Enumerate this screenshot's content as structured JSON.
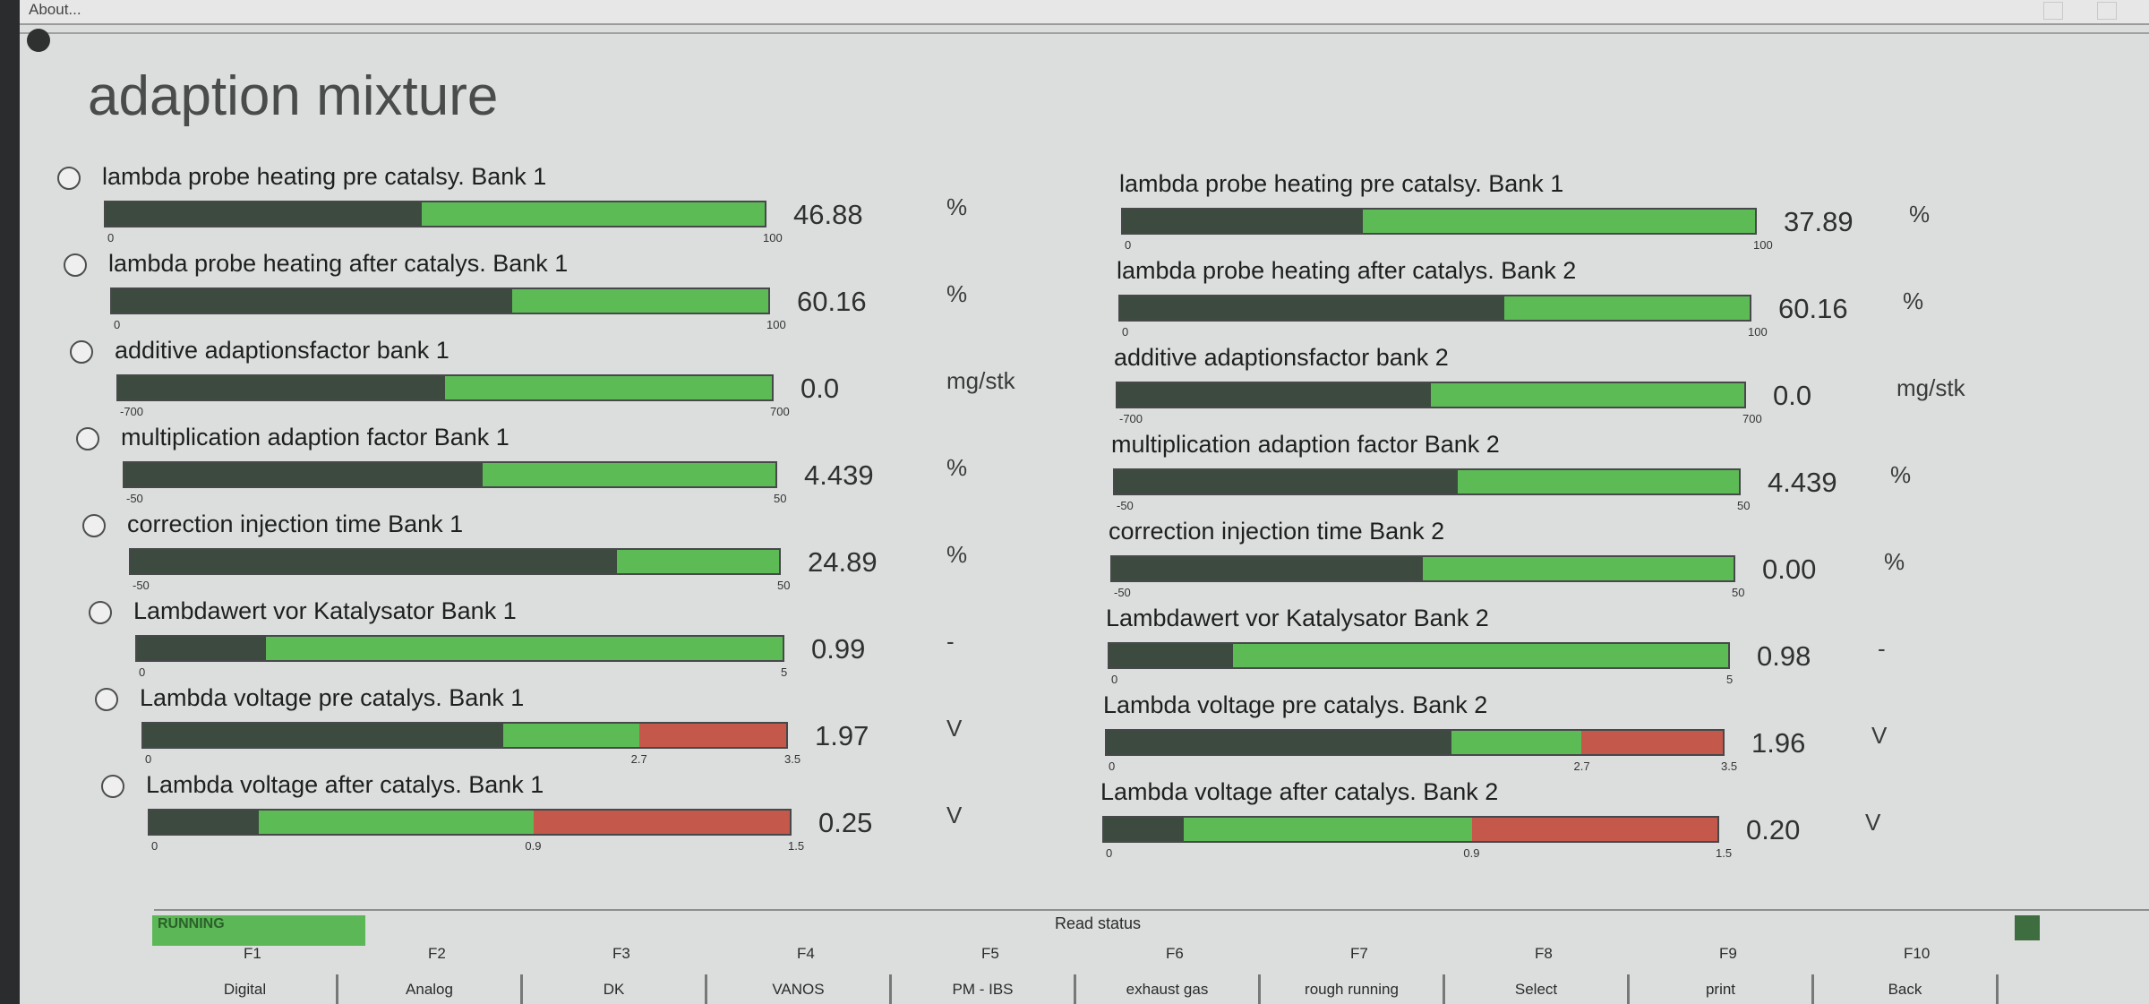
{
  "menubar": {
    "about": "About..."
  },
  "title": "adaption mixture",
  "left_rows": [
    {
      "label": "lambda probe heating pre catalsy. Bank 1",
      "value": "46.88",
      "unit": "%",
      "min": "0",
      "max": "100",
      "fill": 0.48
    },
    {
      "label": "lambda probe heating after catalys. Bank 1",
      "value": "60.16",
      "unit": "%",
      "min": "0",
      "max": "100",
      "fill": 0.61
    },
    {
      "label": "additive adaptionsfactor bank 1",
      "value": "0.0",
      "unit": "mg/stk",
      "min": "-700",
      "max": "700",
      "fill": 0.5
    },
    {
      "label": "multiplication adaption factor Bank 1",
      "value": "4.439",
      "unit": "%",
      "min": "-50",
      "max": "50",
      "fill": 0.55
    },
    {
      "label": "correction injection time Bank 1",
      "value": "24.89",
      "unit": "%",
      "min": "-50",
      "max": "50",
      "fill": 0.75
    },
    {
      "label": "Lambdawert vor Katalysator Bank 1",
      "value": "0.99",
      "unit": "-",
      "min": "0",
      "max": "5",
      "fill": 0.2
    },
    {
      "label": "Lambda voltage pre catalys. Bank 1",
      "value": "1.97",
      "unit": "V",
      "min": "0",
      "mid": "2.7",
      "max": "3.5",
      "fill": 0.56,
      "red_start": 0.771
    },
    {
      "label": "Lambda voltage after catalys. Bank 1",
      "value": "0.25",
      "unit": "V",
      "min": "0",
      "mid": "0.9",
      "max": "1.5",
      "fill": 0.17,
      "red_start": 0.6
    }
  ],
  "right_rows": [
    {
      "label": "lambda probe heating pre catalsy. Bank 1",
      "value": "37.89",
      "unit": "%",
      "min": "0",
      "max": "100",
      "fill": 0.38
    },
    {
      "label": "lambda probe heating after catalys. Bank 2",
      "value": "60.16",
      "unit": "%",
      "min": "0",
      "max": "100",
      "fill": 0.61
    },
    {
      "label": "additive adaptionsfactor bank 2",
      "value": "0.0",
      "unit": "mg/stk",
      "min": "-700",
      "max": "700",
      "fill": 0.5
    },
    {
      "label": "multiplication adaption factor Bank 2",
      "value": "4.439",
      "unit": "%",
      "min": "-50",
      "max": "50",
      "fill": 0.55
    },
    {
      "label": "correction injection time Bank 2",
      "value": "0.00",
      "unit": "%",
      "min": "-50",
      "max": "50",
      "fill": 0.5
    },
    {
      "label": "Lambdawert vor Katalysator Bank 2",
      "value": "0.98",
      "unit": "-",
      "min": "0",
      "max": "5",
      "fill": 0.2
    },
    {
      "label": "Lambda voltage pre catalys. Bank 2",
      "value": "1.96",
      "unit": "V",
      "min": "0",
      "mid": "2.7",
      "max": "3.5",
      "fill": 0.56,
      "red_start": 0.771
    },
    {
      "label": "Lambda voltage after catalys. Bank 2",
      "value": "0.20",
      "unit": "V",
      "min": "0",
      "mid": "0.9",
      "max": "1.5",
      "fill": 0.13,
      "red_start": 0.6
    }
  ],
  "status": {
    "running": "RUNNING",
    "read_status": "Read status"
  },
  "fkeys": [
    {
      "key": "F1",
      "label": "Digital"
    },
    {
      "key": "F2",
      "label": "Analog"
    },
    {
      "key": "F3",
      "label": "DK"
    },
    {
      "key": "F4",
      "label": "VANOS"
    },
    {
      "key": "F5",
      "label": "PM - IBS"
    },
    {
      "key": "F6",
      "label": "exhaust gas"
    },
    {
      "key": "F7",
      "label": "rough running"
    },
    {
      "key": "F8",
      "label": "Select"
    },
    {
      "key": "F9",
      "label": "print"
    },
    {
      "key": "F10",
      "label": "Back"
    }
  ],
  "colors": {
    "bar_green": "#5dbb56",
    "bar_dark": "#3d4a3f",
    "bar_red": "#c4584a",
    "running_green": "#5cb756"
  }
}
